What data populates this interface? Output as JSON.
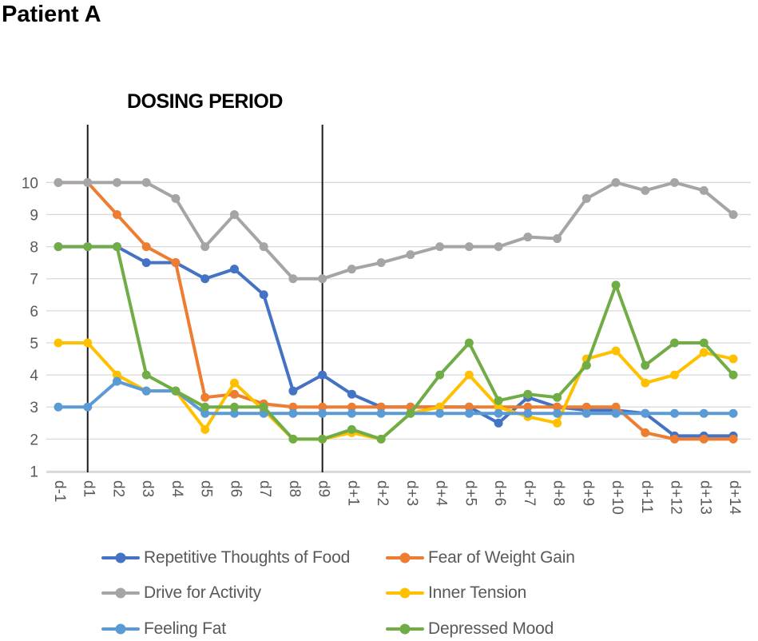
{
  "title": "Patient A",
  "annotation": {
    "label": "DOSING PERIOD"
  },
  "style": {
    "grid_color": "#D9D9D9",
    "axis_line_color": "#C9C9C9",
    "tick_label_color": "#595959",
    "dosing_line_color": "#1a1a1a",
    "legend_text_color": "#595959"
  },
  "chart_data": {
    "type": "line",
    "title": "Patient A",
    "xlabel": "",
    "ylabel": "",
    "ylim": [
      1,
      10
    ],
    "yticks": [
      1,
      2,
      3,
      4,
      5,
      6,
      7,
      8,
      9,
      10
    ],
    "grid": true,
    "legend_position": "bottom",
    "annotation": "DOSING PERIOD",
    "dosing_period_lines": [
      "d1",
      "d9"
    ],
    "categories": [
      "d-1",
      "d1",
      "d2",
      "d3",
      "d4",
      "d5",
      "d6",
      "d7",
      "d8",
      "d9",
      "d+1",
      "d+2",
      "d+3",
      "d+4",
      "d+5",
      "d+6",
      "d+7",
      "d+8",
      "d+9",
      "d+10",
      "d+11",
      "d+12",
      "d+13",
      "d+14"
    ],
    "series": [
      {
        "name": "Repetitive Thoughts of Food",
        "color": "#4472C4",
        "values": [
          8,
          8,
          8,
          7.5,
          7.5,
          7,
          7.3,
          6.5,
          3.5,
          4,
          3.4,
          3,
          3,
          3,
          3,
          2.5,
          3.3,
          3,
          2.9,
          2.9,
          2.8,
          2.1,
          2.1,
          2.1
        ]
      },
      {
        "name": "Fear of Weight Gain",
        "color": "#ED7D31",
        "values": [
          10,
          10,
          9,
          8,
          7.5,
          3.3,
          3.4,
          3.1,
          3,
          3,
          3,
          3,
          3,
          3,
          3,
          3,
          3,
          3,
          3,
          3,
          2.2,
          2,
          2,
          2
        ]
      },
      {
        "name": "Drive for Activity",
        "color": "#A5A5A5",
        "values": [
          10,
          10,
          10,
          10,
          9.5,
          8,
          9,
          8,
          7,
          7,
          7.3,
          7.5,
          7.75,
          8,
          8,
          8,
          8.3,
          8.25,
          9.5,
          10,
          9.75,
          10,
          9.75,
          9
        ]
      },
      {
        "name": "Inner Tension",
        "color": "#FFC000",
        "values": [
          5,
          5,
          4,
          3.5,
          3.5,
          2.3,
          3.75,
          2.9,
          2,
          2,
          2.2,
          2,
          2.8,
          3,
          4,
          3,
          2.7,
          2.5,
          4.5,
          4.75,
          3.75,
          4,
          4.7,
          4.5
        ]
      },
      {
        "name": "Feeling Fat",
        "color": "#5B9BD5",
        "values": [
          3,
          3,
          3.8,
          3.5,
          3.5,
          2.8,
          2.8,
          2.8,
          2.8,
          2.8,
          2.8,
          2.8,
          2.8,
          2.8,
          2.8,
          2.8,
          2.8,
          2.8,
          2.8,
          2.8,
          2.8,
          2.8,
          2.8,
          2.8
        ]
      },
      {
        "name": "Depressed Mood",
        "color": "#70AD47",
        "values": [
          8,
          8,
          8,
          4,
          3.5,
          3,
          3,
          3,
          2,
          2,
          2.3,
          2,
          2.8,
          4,
          5,
          3.2,
          3.4,
          3.3,
          4.3,
          6.8,
          4.3,
          5,
          5,
          4
        ]
      }
    ]
  }
}
